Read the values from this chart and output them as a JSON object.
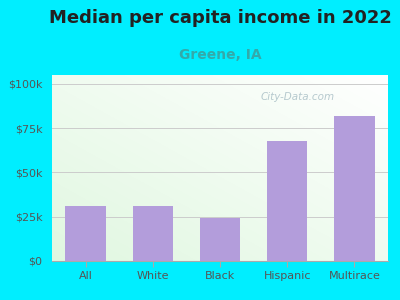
{
  "title": "Median per capita income in 2022",
  "subtitle": "Greene, IA",
  "categories": [
    "All",
    "White",
    "Black",
    "Hispanic",
    "Multirace"
  ],
  "values": [
    31000,
    31000,
    24000,
    68000,
    82000
  ],
  "bar_color": "#b39ddb",
  "background_outer": "#00eeff",
  "yticks": [
    0,
    25000,
    50000,
    75000,
    100000
  ],
  "ytick_labels": [
    "$0",
    "$25k",
    "$50k",
    "$75k",
    "$100k"
  ],
  "ylim": [
    0,
    105000
  ],
  "title_fontsize": 13,
  "subtitle_fontsize": 10,
  "watermark": "City-Data.com"
}
